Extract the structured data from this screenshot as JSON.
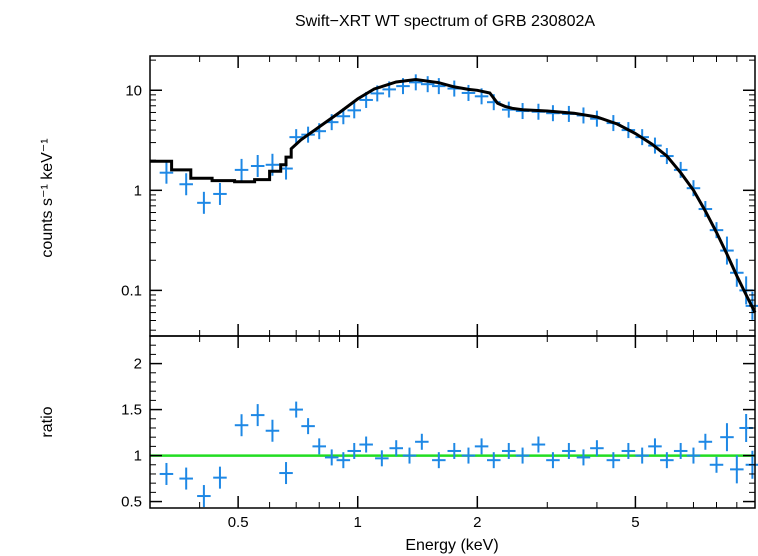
{
  "chart_data": {
    "type": "scatter",
    "title": "Swift−XRT WT spectrum of GRB 230802A",
    "xlabel": "Energy (keV)",
    "x_scale": "log",
    "xlim": [
      0.3,
      10
    ],
    "x_ticks": [
      {
        "value": 0.5,
        "label": "0.5"
      },
      {
        "value": 1,
        "label": "1"
      },
      {
        "value": 2,
        "label": "2"
      },
      {
        "value": 5,
        "label": "5"
      }
    ],
    "panels": [
      {
        "id": "spectrum",
        "ylabel": "counts s⁻¹ keV⁻¹",
        "y_scale": "log",
        "ylim": [
          0.035,
          22
        ],
        "y_ticks": [
          {
            "value": 0.1,
            "label": "0.1"
          },
          {
            "value": 1,
            "label": "1"
          },
          {
            "value": 10,
            "label": "10"
          }
        ],
        "series": [
          {
            "kind": "data",
            "color": "#1e88e5",
            "points": [
              [
                0.33,
                1.5
              ],
              [
                0.37,
                1.15
              ],
              [
                0.41,
                0.75
              ],
              [
                0.45,
                0.92
              ],
              [
                0.51,
                1.6
              ],
              [
                0.56,
                1.75
              ],
              [
                0.61,
                1.8
              ],
              [
                0.66,
                1.65
              ],
              [
                0.7,
                3.4
              ],
              [
                0.75,
                3.6
              ],
              [
                0.8,
                3.9
              ],
              [
                0.86,
                4.8
              ],
              [
                0.92,
                5.5
              ],
              [
                0.98,
                6.3
              ],
              [
                1.05,
                8.0
              ],
              [
                1.12,
                9.3
              ],
              [
                1.2,
                10.2
              ],
              [
                1.3,
                11.0
              ],
              [
                1.4,
                12.0
              ],
              [
                1.5,
                11.5
              ],
              [
                1.6,
                11.0
              ],
              [
                1.75,
                10.4
              ],
              [
                1.9,
                9.4
              ],
              [
                2.05,
                8.7
              ],
              [
                2.2,
                7.6
              ],
              [
                2.4,
                6.4
              ],
              [
                2.6,
                6.2
              ],
              [
                2.85,
                6.1
              ],
              [
                3.1,
                5.9
              ],
              [
                3.4,
                5.8
              ],
              [
                3.7,
                5.6
              ],
              [
                4.0,
                5.2
              ],
              [
                4.4,
                4.7
              ],
              [
                4.8,
                4.0
              ],
              [
                5.2,
                3.4
              ],
              [
                5.6,
                2.8
              ],
              [
                6.0,
                2.2
              ],
              [
                6.5,
                1.6
              ],
              [
                7.0,
                1.05
              ],
              [
                7.5,
                0.65
              ],
              [
                8.0,
                0.4
              ],
              [
                8.5,
                0.25
              ],
              [
                9.0,
                0.15
              ],
              [
                9.5,
                0.1
              ],
              [
                9.85,
                0.07
              ]
            ]
          },
          {
            "kind": "model",
            "color": "#000000",
            "x": [
              0.3,
              0.34,
              0.34,
              0.38,
              0.38,
              0.43,
              0.43,
              0.49,
              0.49,
              0.55,
              0.55,
              0.6,
              0.6,
              0.64,
              0.64,
              0.66,
              0.66,
              0.68,
              0.68,
              0.72,
              0.8,
              0.9,
              1.0,
              1.1,
              1.25,
              1.4,
              1.6,
              1.75,
              1.9,
              2.0,
              2.15,
              2.25,
              2.35,
              2.45,
              2.6,
              3.0,
              3.5,
              4.0,
              4.5,
              5.0,
              5.5,
              6.0,
              6.5,
              7.0,
              7.5,
              8.0,
              8.5,
              9.0,
              9.5,
              10.0
            ],
            "y": [
              1.95,
              1.95,
              1.6,
              1.6,
              1.32,
              1.32,
              1.25,
              1.25,
              1.22,
              1.22,
              1.28,
              1.28,
              1.55,
              1.55,
              1.8,
              1.8,
              2.15,
              2.15,
              2.6,
              3.2,
              4.3,
              6.0,
              8.2,
              10.3,
              12.1,
              12.8,
              11.9,
              10.8,
              10.2,
              10.0,
              9.4,
              7.4,
              6.9,
              6.6,
              6.4,
              6.2,
              5.9,
              5.4,
              4.6,
              3.7,
              2.9,
              2.2,
              1.5,
              1.0,
              0.62,
              0.38,
              0.23,
              0.14,
              0.09,
              0.06
            ]
          }
        ]
      },
      {
        "id": "ratio",
        "ylabel": "ratio",
        "y_scale": "linear",
        "ylim": [
          0.43,
          2.3
        ],
        "y_ticks": [
          {
            "value": 0.5,
            "label": "0.5"
          },
          {
            "value": 1,
            "label": "1"
          },
          {
            "value": 1.5,
            "label": "1.5"
          },
          {
            "value": 2,
            "label": "2"
          }
        ],
        "reference_line": {
          "value": 1,
          "color": "#22dd22"
        },
        "series": [
          {
            "kind": "data",
            "color": "#1e88e5",
            "points": [
              [
                0.33,
                0.8
              ],
              [
                0.37,
                0.75
              ],
              [
                0.41,
                0.56
              ],
              [
                0.45,
                0.76
              ],
              [
                0.51,
                1.33
              ],
              [
                0.56,
                1.44
              ],
              [
                0.61,
                1.27
              ],
              [
                0.66,
                0.81
              ],
              [
                0.7,
                1.5
              ],
              [
                0.75,
                1.32
              ],
              [
                0.8,
                1.1
              ],
              [
                0.86,
                0.98
              ],
              [
                0.92,
                0.95
              ],
              [
                0.98,
                1.05
              ],
              [
                1.05,
                1.12
              ],
              [
                1.15,
                0.97
              ],
              [
                1.25,
                1.08
              ],
              [
                1.35,
                1.0
              ],
              [
                1.45,
                1.15
              ],
              [
                1.6,
                0.95
              ],
              [
                1.75,
                1.05
              ],
              [
                1.9,
                1.0
              ],
              [
                2.05,
                1.1
              ],
              [
                2.2,
                0.95
              ],
              [
                2.4,
                1.05
              ],
              [
                2.6,
                1.0
              ],
              [
                2.85,
                1.12
              ],
              [
                3.1,
                0.95
              ],
              [
                3.4,
                1.05
              ],
              [
                3.7,
                0.98
              ],
              [
                4.0,
                1.08
              ],
              [
                4.4,
                0.95
              ],
              [
                4.8,
                1.05
              ],
              [
                5.2,
                1.0
              ],
              [
                5.6,
                1.1
              ],
              [
                6.0,
                0.95
              ],
              [
                6.5,
                1.05
              ],
              [
                7.0,
                1.0
              ],
              [
                7.5,
                1.15
              ],
              [
                8.0,
                0.9
              ],
              [
                8.5,
                1.2
              ],
              [
                9.0,
                0.85
              ],
              [
                9.5,
                1.3
              ],
              [
                9.85,
                0.9
              ]
            ]
          }
        ]
      }
    ]
  }
}
